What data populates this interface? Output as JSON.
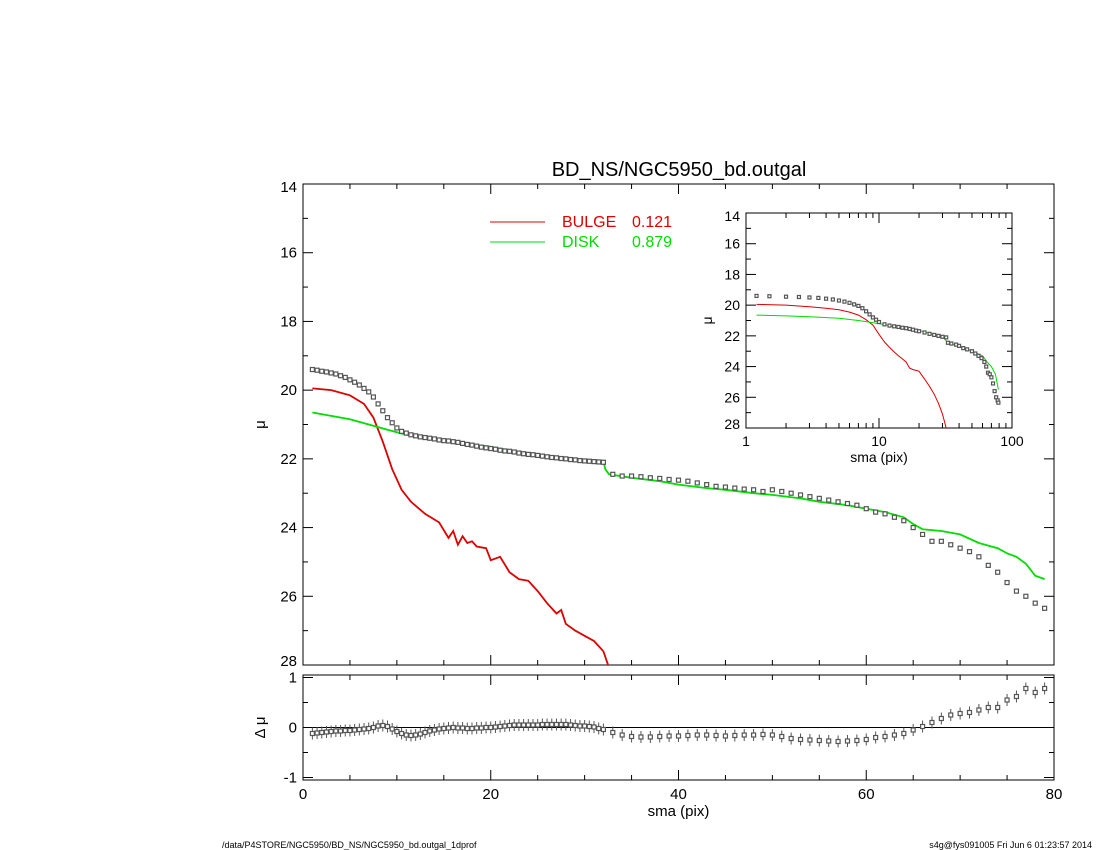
{
  "title": "BD_NS/NGC5950_bd.outgal",
  "footer": {
    "left": "/data/P4STORE/NGC5950/BD_NS/NGC5950_bd.outgal_1dprof",
    "right": "s4g@fys091005  Fri Jun  6 01:23:57 2014"
  },
  "colors": {
    "bulge": "#dd0000",
    "disk": "#00dd00",
    "data": "#555555",
    "axis": "#000000"
  },
  "chart_data": [
    {
      "id": "main",
      "type": "line",
      "ylabel": "μ",
      "xlim": [
        0,
        80
      ],
      "ylim": [
        28,
        14
      ],
      "xticks": [
        0,
        20,
        40,
        60,
        80
      ],
      "yticks": [
        14,
        16,
        18,
        20,
        22,
        24,
        26,
        28
      ],
      "legend": [
        {
          "label": "BULGE",
          "value": "0.121",
          "color": "#dd0000"
        },
        {
          "label": "DISK",
          "value": "0.879",
          "color": "#00dd00"
        }
      ],
      "series": [
        {
          "name": "BULGE",
          "color": "#dd0000",
          "x": [
            1,
            3,
            5,
            6.5,
            7.5,
            8.5,
            9.5,
            10.5,
            11.5,
            13,
            14.5,
            15.5,
            16,
            16.5,
            17,
            17.5,
            18,
            18.5,
            19.5,
            20,
            21,
            22,
            23,
            24,
            25,
            26,
            27,
            27.5,
            28,
            29,
            30,
            31,
            32,
            32.5,
            32.6
          ],
          "y": [
            19.95,
            20.0,
            20.15,
            20.4,
            20.8,
            21.5,
            22.3,
            22.9,
            23.25,
            23.6,
            23.85,
            24.3,
            24.1,
            24.5,
            24.25,
            24.45,
            24.4,
            24.55,
            24.6,
            24.95,
            24.85,
            25.3,
            25.5,
            25.55,
            25.85,
            26.2,
            26.5,
            26.4,
            26.8,
            27.0,
            27.15,
            27.3,
            27.6,
            28.0,
            28.1
          ]
        },
        {
          "name": "DISK",
          "color": "#00dd00",
          "x": [
            1,
            3,
            5,
            7,
            9,
            11,
            13,
            15,
            17,
            20,
            23,
            26,
            29,
            32,
            32.2,
            32.6,
            35,
            38,
            40,
            43,
            45,
            48,
            50,
            53,
            55,
            58,
            60,
            62,
            64,
            65,
            66,
            68,
            70,
            72,
            74,
            75,
            76,
            77,
            78,
            79
          ],
          "y": [
            20.65,
            20.75,
            20.85,
            21.0,
            21.15,
            21.3,
            21.4,
            21.5,
            21.55,
            21.65,
            21.8,
            21.9,
            22.0,
            22.05,
            22.3,
            22.45,
            22.55,
            22.65,
            22.75,
            22.85,
            22.9,
            23.0,
            23.05,
            23.15,
            23.25,
            23.35,
            23.45,
            23.55,
            23.7,
            23.9,
            24.05,
            24.1,
            24.2,
            24.45,
            24.6,
            24.75,
            24.85,
            25.05,
            25.4,
            25.5
          ]
        },
        {
          "name": "data",
          "color": "#555555",
          "marker": "square",
          "x": [
            1,
            1.5,
            2,
            2.5,
            3,
            3.5,
            4,
            4.5,
            5,
            5.5,
            6,
            6.5,
            7,
            7.5,
            8,
            8.5,
            9,
            9.5,
            10,
            10.5,
            11,
            11.5,
            12,
            12.5,
            13,
            13.5,
            14,
            14.5,
            15,
            15.5,
            16,
            16.5,
            17,
            17.5,
            18,
            18.5,
            19,
            19.5,
            20,
            20.5,
            21,
            21.5,
            22,
            22.5,
            23,
            23.5,
            24,
            24.5,
            25,
            25.5,
            26,
            26.5,
            27,
            27.5,
            28,
            28.5,
            29,
            29.5,
            30,
            30.5,
            31,
            31.5,
            32,
            33,
            34,
            35,
            36,
            37,
            38,
            39,
            40,
            41,
            42,
            43,
            44,
            45,
            46,
            47,
            48,
            49,
            50,
            51,
            52,
            53,
            54,
            55,
            56,
            57,
            58,
            59,
            60,
            61,
            62,
            63,
            64,
            65,
            66,
            67,
            68,
            69,
            70,
            71,
            72,
            73,
            74,
            75,
            76,
            77,
            78,
            79
          ],
          "y": [
            19.4,
            19.42,
            19.45,
            19.47,
            19.5,
            19.53,
            19.58,
            19.63,
            19.7,
            19.77,
            19.85,
            19.95,
            20.05,
            20.2,
            20.4,
            20.6,
            20.8,
            20.95,
            21.1,
            21.2,
            21.25,
            21.3,
            21.33,
            21.36,
            21.38,
            21.4,
            21.42,
            21.45,
            21.47,
            21.48,
            21.5,
            21.52,
            21.55,
            21.58,
            21.6,
            21.63,
            21.66,
            21.68,
            21.7,
            21.72,
            21.75,
            21.77,
            21.78,
            21.8,
            21.83,
            21.85,
            21.87,
            21.88,
            21.9,
            21.92,
            21.94,
            21.96,
            21.97,
            21.99,
            22.0,
            22.02,
            22.03,
            22.05,
            22.06,
            22.07,
            22.08,
            22.09,
            22.1,
            22.45,
            22.5,
            22.5,
            22.52,
            22.55,
            22.57,
            22.6,
            22.62,
            22.65,
            22.7,
            22.75,
            22.8,
            22.82,
            22.85,
            22.88,
            22.9,
            22.95,
            22.9,
            22.95,
            23.0,
            23.05,
            23.1,
            23.15,
            23.2,
            23.25,
            23.3,
            23.35,
            23.45,
            23.55,
            23.6,
            23.7,
            23.8,
            24.0,
            24.2,
            24.4,
            24.4,
            24.5,
            24.6,
            24.7,
            24.85,
            25.1,
            25.3,
            25.6,
            25.85,
            26.0,
            26.2,
            26.35
          ]
        }
      ]
    },
    {
      "id": "inset",
      "type": "line",
      "xscale": "log",
      "xlabel": "sma (pix)",
      "ylabel": "μ",
      "xlim": [
        1,
        100
      ],
      "ylim": [
        28,
        14
      ],
      "xticks": [
        1,
        10,
        100
      ],
      "xtick_labels": [
        "1",
        "10",
        "100"
      ],
      "yticks": [
        14,
        16,
        18,
        20,
        22,
        24,
        26,
        28
      ],
      "series": [
        {
          "name": "BULGE",
          "color": "#dd0000",
          "x": [
            1.2,
            2,
            3,
            4,
            5,
            6,
            7,
            8,
            9,
            10,
            11,
            12,
            13,
            14,
            15,
            16,
            17,
            18,
            20,
            22,
            24,
            26,
            28,
            30,
            32
          ],
          "y": [
            19.95,
            20.0,
            20.1,
            20.2,
            20.3,
            20.45,
            20.65,
            20.95,
            21.3,
            21.9,
            22.4,
            22.75,
            23.05,
            23.3,
            23.5,
            23.7,
            24.1,
            24.2,
            24.3,
            24.8,
            25.3,
            25.8,
            26.4,
            27.1,
            28.0
          ]
        },
        {
          "name": "DISK",
          "color": "#00dd00",
          "x": [
            1.2,
            2,
            3,
            5,
            7,
            10,
            15,
            20,
            30,
            33,
            40,
            50,
            60,
            65,
            70,
            75,
            79
          ],
          "y": [
            20.65,
            20.7,
            20.75,
            20.85,
            21.0,
            21.2,
            21.5,
            21.65,
            22.05,
            22.45,
            22.7,
            23.0,
            23.3,
            23.7,
            24.0,
            24.5,
            25.5
          ]
        },
        {
          "name": "data",
          "color": "#555555",
          "marker": "square",
          "x": [
            1.2,
            1.5,
            2,
            2.5,
            3,
            3.5,
            4,
            4.5,
            5,
            5.5,
            6,
            6.5,
            7,
            7.5,
            8,
            8.5,
            9,
            9.5,
            10,
            11,
            12,
            13,
            14,
            15,
            16,
            17,
            18,
            19,
            20,
            22,
            24,
            26,
            28,
            30,
            32,
            33,
            35,
            38,
            40,
            43,
            46,
            50,
            53,
            56,
            59,
            62,
            64,
            66,
            68,
            70,
            72,
            74,
            76,
            78,
            79
          ],
          "y": [
            19.4,
            19.42,
            19.45,
            19.47,
            19.5,
            19.53,
            19.58,
            19.63,
            19.7,
            19.77,
            19.85,
            19.95,
            20.05,
            20.2,
            20.4,
            20.6,
            20.8,
            20.95,
            21.1,
            21.25,
            21.33,
            21.38,
            21.42,
            21.47,
            21.5,
            21.55,
            21.6,
            21.66,
            21.7,
            21.78,
            21.87,
            21.94,
            22.0,
            22.06,
            22.1,
            22.45,
            22.5,
            22.57,
            22.65,
            22.8,
            22.88,
            23.0,
            23.15,
            23.3,
            23.45,
            23.7,
            24.0,
            24.4,
            24.5,
            24.7,
            25.1,
            25.6,
            26.0,
            26.2,
            26.35
          ]
        }
      ]
    },
    {
      "id": "residual",
      "type": "scatter",
      "xlabel": "sma (pix)",
      "ylabel": "Δ μ",
      "xlim": [
        0,
        80
      ],
      "ylim": [
        -1.05,
        1.05
      ],
      "xticks": [
        0,
        20,
        40,
        60,
        80
      ],
      "yticks": [
        -1,
        0,
        1
      ],
      "zero_line": true,
      "series": [
        {
          "name": "residual",
          "color": "#555555",
          "marker": "square",
          "errorbars": true,
          "x": [
            1,
            1.5,
            2,
            2.5,
            3,
            3.5,
            4,
            4.5,
            5,
            5.5,
            6,
            6.5,
            7,
            7.5,
            8,
            8.5,
            9,
            9.5,
            10,
            10.5,
            11,
            11.5,
            12,
            12.5,
            13,
            13.5,
            14,
            14.5,
            15,
            15.5,
            16,
            16.5,
            17,
            17.5,
            18,
            18.5,
            19,
            19.5,
            20,
            20.5,
            21,
            21.5,
            22,
            22.5,
            23,
            23.5,
            24,
            24.5,
            25,
            25.5,
            26,
            26.5,
            27,
            27.5,
            28,
            28.5,
            29,
            29.5,
            30,
            30.5,
            31,
            31.5,
            32,
            33,
            34,
            35,
            36,
            37,
            38,
            39,
            40,
            41,
            42,
            43,
            44,
            45,
            46,
            47,
            48,
            49,
            50,
            51,
            52,
            53,
            54,
            55,
            56,
            57,
            58,
            59,
            60,
            61,
            62,
            63,
            64,
            65,
            66,
            67,
            68,
            69,
            70,
            71,
            72,
            73,
            74,
            75,
            76,
            77,
            78,
            79
          ],
          "y": [
            -0.12,
            -0.11,
            -0.1,
            -0.09,
            -0.08,
            -0.07,
            -0.07,
            -0.06,
            -0.06,
            -0.05,
            -0.04,
            -0.03,
            -0.02,
            0.0,
            0.03,
            0.04,
            0.02,
            -0.03,
            -0.08,
            -0.12,
            -0.15,
            -0.16,
            -0.15,
            -0.13,
            -0.1,
            -0.07,
            -0.05,
            -0.03,
            -0.02,
            -0.01,
            0.0,
            -0.01,
            -0.01,
            -0.02,
            -0.02,
            -0.01,
            -0.01,
            0.0,
            0.0,
            0.01,
            0.02,
            0.03,
            0.04,
            0.05,
            0.05,
            0.05,
            0.05,
            0.05,
            0.05,
            0.06,
            0.06,
            0.06,
            0.06,
            0.06,
            0.06,
            0.05,
            0.04,
            0.03,
            0.03,
            0.02,
            0.01,
            -0.02,
            -0.04,
            -0.1,
            -0.15,
            -0.18,
            -0.19,
            -0.19,
            -0.18,
            -0.17,
            -0.17,
            -0.16,
            -0.15,
            -0.15,
            -0.16,
            -0.17,
            -0.16,
            -0.15,
            -0.15,
            -0.14,
            -0.15,
            -0.18,
            -0.22,
            -0.24,
            -0.25,
            -0.26,
            -0.27,
            -0.28,
            -0.27,
            -0.26,
            -0.24,
            -0.2,
            -0.18,
            -0.15,
            -0.12,
            -0.05,
            0.02,
            0.1,
            0.18,
            0.25,
            0.28,
            0.3,
            0.35,
            0.4,
            0.4,
            0.55,
            0.62,
            0.78,
            0.7,
            0.78
          ]
        }
      ]
    }
  ]
}
